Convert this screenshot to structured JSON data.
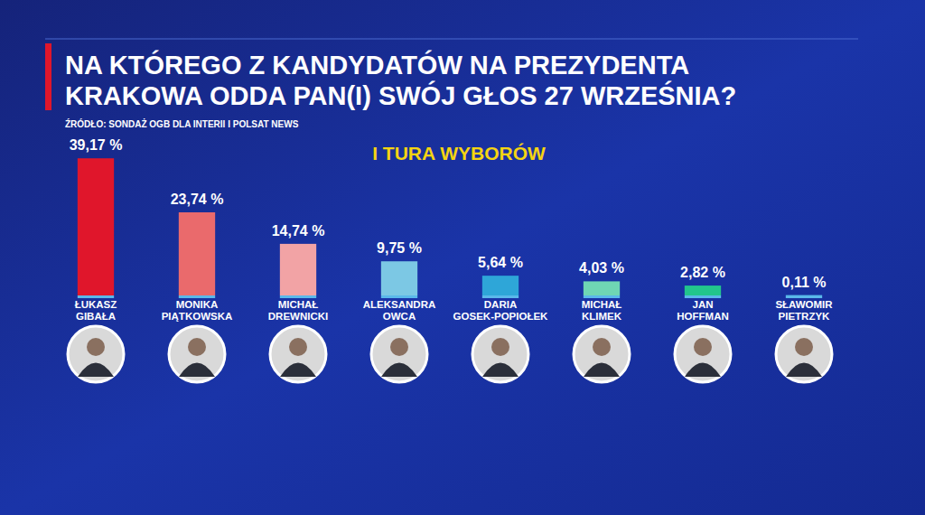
{
  "chart_data": {
    "type": "bar",
    "title": "NA KTÓREGO Z KANDYDATÓW NA PREZYDENTA KRAKOWA ODDA PAN(I) SWÓJ GŁOS 27 WRZEŚNIA?",
    "source": "ŹRÓDŁO: SONDAŻ OGB DLA INTERII I POLSAT NEWS",
    "subtitle": "I TURA WYBORÓW",
    "categories": [
      "ŁUKASZ GIBAŁA",
      "MONIKA PIĄTKOWSKA",
      "MICHAŁ DREWNICKI",
      "ALEKSANDRA OWCA",
      "DARIA GOSEK-POPIOŁEK",
      "MICHAŁ KLIMEK",
      "JAN HOFFMAN",
      "SŁAWOMIR PIETRZYK"
    ],
    "values": [
      39.17,
      23.74,
      14.74,
      9.75,
      5.64,
      4.03,
      2.82,
      0.11
    ],
    "value_labels": [
      "39,17 %",
      "23,74 %",
      "14,74 %",
      "9,75 %",
      "5,64 %",
      "4,03 %",
      "2,82 %",
      "0,11 %"
    ],
    "colors": [
      "#e0162b",
      "#ea6a6c",
      "#f2a3a5",
      "#7cc8e4",
      "#2ea6d8",
      "#6fd6b4",
      "#22c58c",
      "#4fb4e0"
    ],
    "ylim": [
      0,
      40
    ],
    "data_labels": true,
    "tick_labels": false
  }
}
